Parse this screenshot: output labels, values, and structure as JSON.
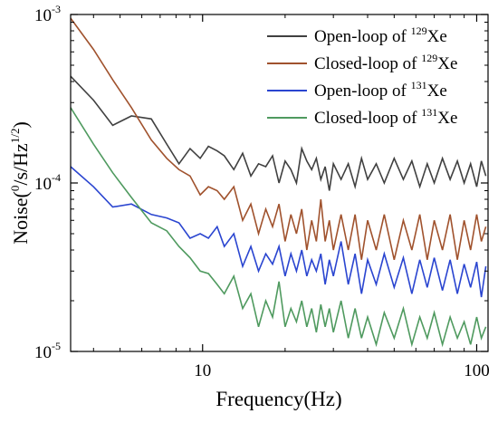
{
  "chart_data": {
    "type": "line",
    "xlabel": "Frequency(Hz)",
    "ylabel_parts": [
      "Noise(",
      "0",
      "/s/Hz",
      "1/2",
      ")"
    ],
    "x_scale": "log",
    "y_scale": "log",
    "xlim": [
      3.3,
      110
    ],
    "ylim": [
      1e-05,
      0.001
    ],
    "x_ticks": [
      {
        "value": 10,
        "label": "10"
      },
      {
        "value": 100,
        "label": "100"
      }
    ],
    "y_ticks": [
      {
        "value": 0.001,
        "base": "10",
        "exp": "-3"
      },
      {
        "value": 0.0001,
        "base": "10",
        "exp": "-4"
      },
      {
        "value": 1e-05,
        "base": "10",
        "exp": "-5"
      }
    ],
    "legend_position": "top-right",
    "series": [
      {
        "name_parts": [
          "Open-loop of ",
          "129",
          "Xe"
        ],
        "color": "#404040",
        "points": [
          [
            3.3,
            0.00043
          ],
          [
            4,
            0.00031
          ],
          [
            4.7,
            0.00022
          ],
          [
            5.5,
            0.00025
          ],
          [
            6.5,
            0.00024
          ],
          [
            7.4,
            0.00017
          ],
          [
            8.2,
            0.00013
          ],
          [
            9,
            0.00016
          ],
          [
            9.8,
            0.00014
          ],
          [
            10.5,
            0.000165
          ],
          [
            11.3,
            0.000155
          ],
          [
            12,
            0.000145
          ],
          [
            13,
            0.00012
          ],
          [
            14,
            0.00015
          ],
          [
            15,
            0.00011
          ],
          [
            16,
            0.00013
          ],
          [
            17,
            0.000125
          ],
          [
            18,
            0.000145
          ],
          [
            19,
            0.0001
          ],
          [
            20,
            0.000135
          ],
          [
            21,
            0.00012
          ],
          [
            22,
            0.0001
          ],
          [
            23,
            0.00016
          ],
          [
            24,
            0.000135
          ],
          [
            25,
            0.00012
          ],
          [
            26,
            0.00014
          ],
          [
            27,
            0.000105
          ],
          [
            28,
            0.000125
          ],
          [
            29,
            9e-05
          ],
          [
            30,
            0.00013
          ],
          [
            32,
            0.000105
          ],
          [
            34,
            0.00013
          ],
          [
            36,
            9.5e-05
          ],
          [
            38,
            0.00014
          ],
          [
            40,
            0.000105
          ],
          [
            43,
            0.00013
          ],
          [
            46,
            0.0001
          ],
          [
            50,
            0.00014
          ],
          [
            54,
            0.000105
          ],
          [
            58,
            0.000135
          ],
          [
            62,
            9.5e-05
          ],
          [
            66,
            0.00013
          ],
          [
            70,
            0.0001
          ],
          [
            75,
            0.00014
          ],
          [
            80,
            0.000105
          ],
          [
            85,
            0.000135
          ],
          [
            90,
            0.0001
          ],
          [
            95,
            0.00013
          ],
          [
            100,
            9.5e-05
          ],
          [
            104,
            0.000135
          ],
          [
            108,
            0.00011
          ]
        ]
      },
      {
        "name_parts": [
          "Closed-loop of ",
          "129",
          "Xe"
        ],
        "color": "#a0522d",
        "points": [
          [
            3.3,
            0.00095
          ],
          [
            4,
            0.00062
          ],
          [
            4.7,
            0.00041
          ],
          [
            5.5,
            0.00028
          ],
          [
            6.5,
            0.00018
          ],
          [
            7.4,
            0.00014
          ],
          [
            8.2,
            0.00012
          ],
          [
            9,
            0.00011
          ],
          [
            9.8,
            8.5e-05
          ],
          [
            10.5,
            9.5e-05
          ],
          [
            11.3,
            9e-05
          ],
          [
            12,
            8e-05
          ],
          [
            13,
            9.5e-05
          ],
          [
            14,
            6e-05
          ],
          [
            15,
            7.5e-05
          ],
          [
            16,
            5e-05
          ],
          [
            17,
            7e-05
          ],
          [
            18,
            5.5e-05
          ],
          [
            19,
            7.5e-05
          ],
          [
            20,
            4.5e-05
          ],
          [
            21,
            6.5e-05
          ],
          [
            22,
            5e-05
          ],
          [
            23,
            7e-05
          ],
          [
            24,
            4e-05
          ],
          [
            25,
            6e-05
          ],
          [
            26,
            4.5e-05
          ],
          [
            27,
            8e-05
          ],
          [
            28,
            4.5e-05
          ],
          [
            29,
            6e-05
          ],
          [
            30,
            4e-05
          ],
          [
            32,
            6.5e-05
          ],
          [
            34,
            4e-05
          ],
          [
            36,
            6.5e-05
          ],
          [
            38,
            3.5e-05
          ],
          [
            40,
            6e-05
          ],
          [
            43,
            4e-05
          ],
          [
            46,
            6.5e-05
          ],
          [
            50,
            3.5e-05
          ],
          [
            54,
            6e-05
          ],
          [
            58,
            4e-05
          ],
          [
            62,
            6.5e-05
          ],
          [
            66,
            3.5e-05
          ],
          [
            70,
            6e-05
          ],
          [
            75,
            4e-05
          ],
          [
            80,
            6.5e-05
          ],
          [
            85,
            3.5e-05
          ],
          [
            90,
            6e-05
          ],
          [
            95,
            4e-05
          ],
          [
            100,
            6.5e-05
          ],
          [
            104,
            4.5e-05
          ],
          [
            108,
            5.5e-05
          ]
        ]
      },
      {
        "name_parts": [
          "Open-loop of ",
          "131",
          "Xe"
        ],
        "color": "#2a45d0",
        "points": [
          [
            3.3,
            0.000125
          ],
          [
            4,
            9.5e-05
          ],
          [
            4.7,
            7.2e-05
          ],
          [
            5.5,
            7.5e-05
          ],
          [
            6.5,
            6.5e-05
          ],
          [
            7.4,
            6.2e-05
          ],
          [
            8.2,
            5.8e-05
          ],
          [
            9,
            4.7e-05
          ],
          [
            9.8,
            5e-05
          ],
          [
            10.5,
            4.7e-05
          ],
          [
            11.3,
            5.5e-05
          ],
          [
            12,
            4.2e-05
          ],
          [
            13,
            5e-05
          ],
          [
            14,
            3.2e-05
          ],
          [
            15,
            4.2e-05
          ],
          [
            16,
            3e-05
          ],
          [
            17,
            3.8e-05
          ],
          [
            18,
            3.3e-05
          ],
          [
            19,
            4.2e-05
          ],
          [
            20,
            2.8e-05
          ],
          [
            21,
            3.8e-05
          ],
          [
            22,
            3e-05
          ],
          [
            23,
            4e-05
          ],
          [
            24,
            2.8e-05
          ],
          [
            25,
            3.5e-05
          ],
          [
            26,
            3e-05
          ],
          [
            27,
            3.8e-05
          ],
          [
            28,
            2.5e-05
          ],
          [
            29,
            3.5e-05
          ],
          [
            30,
            2.8e-05
          ],
          [
            32,
            4.5e-05
          ],
          [
            34,
            2.5e-05
          ],
          [
            36,
            3.8e-05
          ],
          [
            38,
            2.2e-05
          ],
          [
            40,
            3.5e-05
          ],
          [
            43,
            2.5e-05
          ],
          [
            46,
            3.8e-05
          ],
          [
            50,
            2.4e-05
          ],
          [
            54,
            3.6e-05
          ],
          [
            58,
            2.2e-05
          ],
          [
            62,
            3.5e-05
          ],
          [
            66,
            2.4e-05
          ],
          [
            70,
            3.6e-05
          ],
          [
            75,
            2.3e-05
          ],
          [
            80,
            3.5e-05
          ],
          [
            85,
            2.2e-05
          ],
          [
            90,
            3.3e-05
          ],
          [
            95,
            2.4e-05
          ],
          [
            100,
            3.4e-05
          ],
          [
            104,
            2.1e-05
          ],
          [
            108,
            3.2e-05
          ]
        ]
      },
      {
        "name_parts": [
          "Closed-loop of ",
          "131",
          "Xe"
        ],
        "color": "#4f9a5f",
        "points": [
          [
            3.3,
            0.00028
          ],
          [
            4,
            0.00017
          ],
          [
            4.7,
            0.000115
          ],
          [
            5.5,
            8.2e-05
          ],
          [
            6.5,
            5.8e-05
          ],
          [
            7.4,
            5.2e-05
          ],
          [
            8.2,
            4.2e-05
          ],
          [
            9,
            3.6e-05
          ],
          [
            9.8,
            3e-05
          ],
          [
            10.5,
            2.9e-05
          ],
          [
            11.3,
            2.5e-05
          ],
          [
            12,
            2.2e-05
          ],
          [
            13,
            2.8e-05
          ],
          [
            14,
            1.8e-05
          ],
          [
            15,
            2.2e-05
          ],
          [
            16,
            1.4e-05
          ],
          [
            17,
            2e-05
          ],
          [
            18,
            1.6e-05
          ],
          [
            19,
            2.6e-05
          ],
          [
            20,
            1.4e-05
          ],
          [
            21,
            1.8e-05
          ],
          [
            22,
            1.5e-05
          ],
          [
            23,
            2e-05
          ],
          [
            24,
            1.4e-05
          ],
          [
            25,
            1.8e-05
          ],
          [
            26,
            1.3e-05
          ],
          [
            27,
            1.9e-05
          ],
          [
            28,
            1.4e-05
          ],
          [
            29,
            1.8e-05
          ],
          [
            30,
            1.3e-05
          ],
          [
            32,
            2e-05
          ],
          [
            34,
            1.2e-05
          ],
          [
            36,
            1.8e-05
          ],
          [
            38,
            1.2e-05
          ],
          [
            40,
            1.6e-05
          ],
          [
            43,
            1.1e-05
          ],
          [
            46,
            1.7e-05
          ],
          [
            50,
            1.2e-05
          ],
          [
            54,
            1.8e-05
          ],
          [
            58,
            1.1e-05
          ],
          [
            62,
            1.6e-05
          ],
          [
            66,
            1.2e-05
          ],
          [
            70,
            1.7e-05
          ],
          [
            75,
            1.1e-05
          ],
          [
            80,
            1.6e-05
          ],
          [
            85,
            1.2e-05
          ],
          [
            90,
            1.5e-05
          ],
          [
            95,
            1.1e-05
          ],
          [
            100,
            1.6e-05
          ],
          [
            104,
            1.2e-05
          ],
          [
            108,
            1.4e-05
          ]
        ]
      }
    ]
  }
}
